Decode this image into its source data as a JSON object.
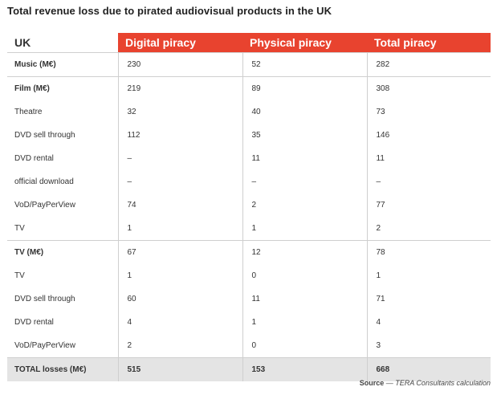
{
  "title": "Total revenue loss due to pirated audiovisual products in the UK",
  "table": {
    "headers": [
      "UK",
      "Digital piracy",
      "Physical piracy",
      "Total piracy"
    ],
    "rows": [
      {
        "label": "Music (M€)",
        "digital": "230",
        "physical": "52",
        "total": "282",
        "group": true
      },
      {
        "label": "Film (M€)",
        "digital": "219",
        "physical": "89",
        "total": "308",
        "group": true
      },
      {
        "label": "Theatre",
        "digital": "32",
        "physical": "40",
        "total": "73",
        "group": false
      },
      {
        "label": "DVD sell through",
        "digital": "112",
        "physical": "35",
        "total": "146",
        "group": false
      },
      {
        "label": "DVD rental",
        "digital": "–",
        "physical": "11",
        "total": "11",
        "group": false
      },
      {
        "label": "official download",
        "digital": "–",
        "physical": "–",
        "total": "–",
        "group": false
      },
      {
        "label": "VoD/PayPerView",
        "digital": "74",
        "physical": "2",
        "total": "77",
        "group": false
      },
      {
        "label": "TV",
        "digital": "1",
        "physical": "1",
        "total": "2",
        "group": false
      },
      {
        "label": "TV (M€)",
        "digital": "67",
        "physical": "12",
        "total": "78",
        "group": true
      },
      {
        "label": "TV",
        "digital": "1",
        "physical": "0",
        "total": "1",
        "group": false
      },
      {
        "label": "DVD sell through",
        "digital": "60",
        "physical": "11",
        "total": "71",
        "group": false
      },
      {
        "label": "DVD rental",
        "digital": "4",
        "physical": "1",
        "total": "4",
        "group": false
      },
      {
        "label": "VoD/PayPerView",
        "digital": "2",
        "physical": "0",
        "total": "3",
        "group": false
      },
      {
        "label": "TOTAL losses (M€)",
        "digital": "515",
        "physical": "153",
        "total": "668",
        "group": true
      }
    ]
  },
  "source": {
    "label": "Source",
    "dash": "—",
    "text": "TERA Consultants calculation"
  },
  "colors": {
    "header_accent": "#e8432f",
    "total_row_bg": "#e4e4e4",
    "rule": "#cfcfcf"
  }
}
